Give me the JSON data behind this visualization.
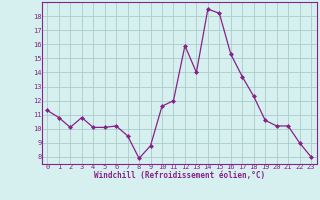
{
  "x": [
    0,
    1,
    2,
    3,
    4,
    5,
    6,
    7,
    8,
    9,
    10,
    11,
    12,
    13,
    14,
    15,
    16,
    17,
    18,
    19,
    20,
    21,
    22,
    23
  ],
  "y": [
    11.3,
    10.8,
    10.1,
    10.8,
    10.1,
    10.1,
    10.2,
    9.5,
    7.9,
    8.8,
    11.6,
    12.0,
    15.9,
    14.0,
    18.5,
    18.2,
    15.3,
    13.7,
    12.3,
    10.6,
    10.2,
    10.2,
    9.0,
    8.0
  ],
  "line_color": "#882288",
  "marker": "D",
  "marker_size": 2.0,
  "bg_color": "#d6f0f0",
  "grid_color": "#aacccc",
  "xlabel": "Windchill (Refroidissement éolien,°C)",
  "xlabel_color": "#882288",
  "tick_color": "#882288",
  "ylim": [
    7.5,
    19.0
  ],
  "xlim": [
    -0.5,
    23.5
  ],
  "yticks": [
    8,
    9,
    10,
    11,
    12,
    13,
    14,
    15,
    16,
    17,
    18
  ],
  "xticks": [
    0,
    1,
    2,
    3,
    4,
    5,
    6,
    7,
    8,
    9,
    10,
    11,
    12,
    13,
    14,
    15,
    16,
    17,
    18,
    19,
    20,
    21,
    22,
    23
  ],
  "xtick_labels": [
    "0",
    "1",
    "2",
    "3",
    "4",
    "5",
    "6",
    "7",
    "8",
    "9",
    "10",
    "11",
    "12",
    "13",
    "14",
    "15",
    "16",
    "17",
    "18",
    "19",
    "20",
    "21",
    "22",
    "23"
  ],
  "ytick_labels": [
    "8",
    "9",
    "10",
    "11",
    "12",
    "13",
    "14",
    "15",
    "16",
    "17",
    "18"
  ]
}
